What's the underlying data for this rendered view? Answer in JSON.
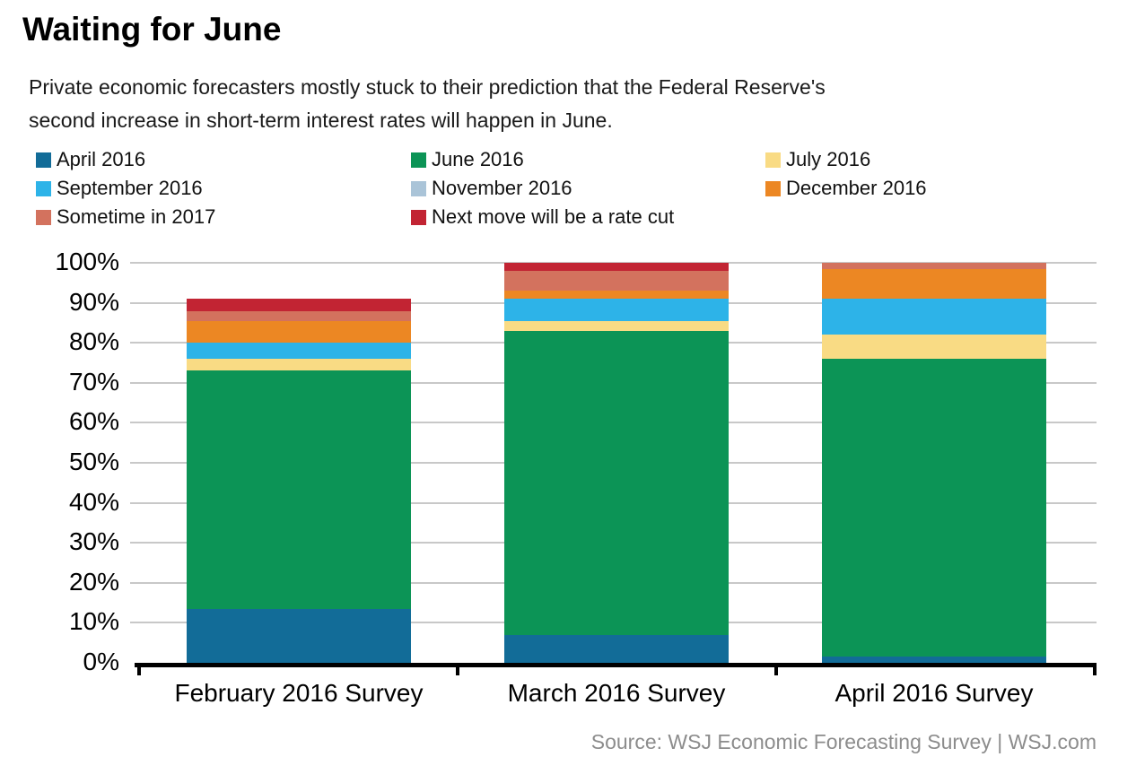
{
  "title": "Waiting for June",
  "subtitle_lines": [
    "Private economic forecasters mostly stuck to their prediction that the Federal Reserve's",
    "second increase in short-term interest rates will happen in June."
  ],
  "source": "Source: WSJ Economic Forecasting Survey  |  WSJ.com",
  "chart_data": {
    "type": "bar",
    "stacked": true,
    "title": "Waiting for June",
    "categories": [
      "February 2016 Survey",
      "March 2016 Survey",
      "April 2016 Survey"
    ],
    "series": [
      {
        "name": "April 2016",
        "color": "#126c98",
        "values": [
          13.5,
          7.0,
          1.5
        ]
      },
      {
        "name": "June 2016",
        "color": "#0c9456",
        "values": [
          59.5,
          76.0,
          74.5
        ]
      },
      {
        "name": "July 2016",
        "color": "#f9db84",
        "values": [
          3.0,
          2.5,
          6.0
        ]
      },
      {
        "name": "September 2016",
        "color": "#2db3e8",
        "values": [
          4.0,
          5.5,
          9.0
        ]
      },
      {
        "name": "November 2016",
        "color": "#aac4d8",
        "values": [
          0,
          0,
          0
        ]
      },
      {
        "name": "December 2016",
        "color": "#ec8723",
        "values": [
          5.5,
          2.0,
          7.5
        ]
      },
      {
        "name": "Sometime in 2017",
        "color": "#d3725e",
        "values": [
          2.5,
          5.0,
          1.5
        ]
      },
      {
        "name": "Next move will be a rate cut",
        "color": "#c22433",
        "values": [
          3.0,
          2.0,
          0
        ]
      }
    ],
    "bar_totals": [
      91,
      100,
      100
    ],
    "ylabel": "",
    "xlabel": "",
    "ylim": [
      0,
      100
    ],
    "ytick_step": 10,
    "yticks": [
      "0%",
      "10%",
      "20%",
      "30%",
      "40%",
      "50%",
      "60%",
      "70%",
      "80%",
      "90%",
      "100%"
    ],
    "grid": true,
    "grid_color": "#c8c8c8",
    "axis_color": "#000000",
    "legend_position": "top"
  }
}
